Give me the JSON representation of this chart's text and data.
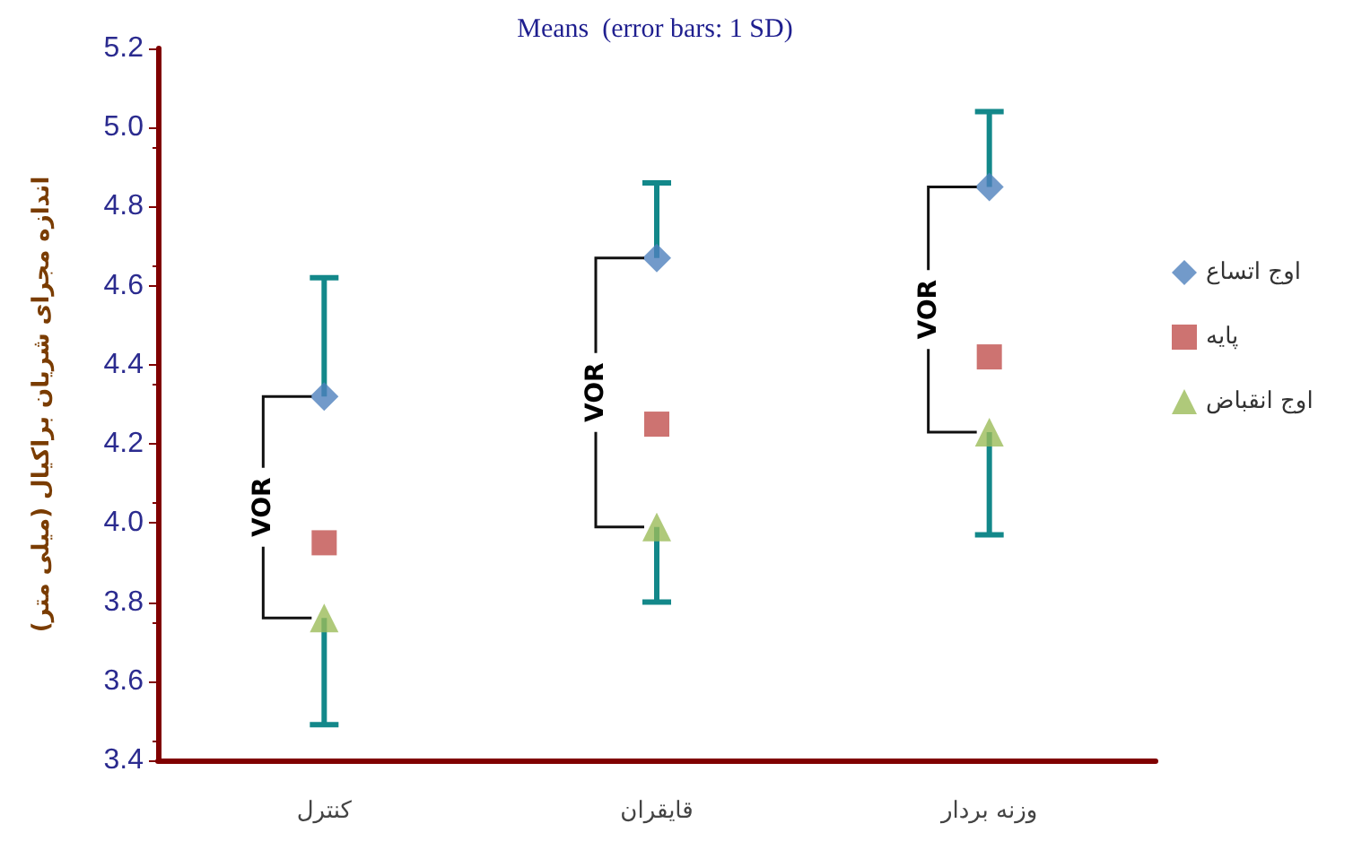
{
  "chart_data": {
    "type": "scatter",
    "title": "Means  (error bars: 1 SD)",
    "ylabel": "اندازه مجرای شریان براکیال (میلی متر)",
    "categories": [
      "کنترل",
      "قایقران",
      "وزنه بردار"
    ],
    "series": [
      {
        "name": "اوج اتساع",
        "color": "#4f81bd",
        "marker": "diamond",
        "values": [
          4.32,
          4.67,
          4.85
        ],
        "errors": [
          [
            4.32,
            4.62
          ],
          [
            4.67,
            4.86
          ],
          [
            4.85,
            5.04
          ]
        ]
      },
      {
        "name": "پایه",
        "color": "#c0504d",
        "marker": "square",
        "values": [
          3.95,
          4.25,
          4.42
        ]
      },
      {
        "name": "اوج انقباض",
        "color": "#9bbb59",
        "marker": "triangle",
        "values": [
          3.76,
          3.99,
          4.23
        ],
        "errors": [
          [
            3.49,
            3.76
          ],
          [
            3.8,
            3.99
          ],
          [
            3.97,
            4.23
          ]
        ]
      }
    ],
    "ylim": [
      3.4,
      5.2
    ],
    "yticks": [
      3.4,
      3.6,
      3.8,
      {
        "value": 4,
        "label": "4.0"
      },
      4.2,
      4.4,
      4.6,
      4.8,
      {
        "value": 5,
        "label": "5.0"
      },
      5.2
    ],
    "annotations": [
      {
        "text": "VOR",
        "x": "کنترل",
        "y": 4.32
      },
      {
        "text": "VOR",
        "x": "قایقران",
        "y": 4.67
      },
      {
        "text": "VOR",
        "x": "وزنه بردار",
        "y": 4.85
      }
    ],
    "grid": false,
    "legend": "right"
  }
}
